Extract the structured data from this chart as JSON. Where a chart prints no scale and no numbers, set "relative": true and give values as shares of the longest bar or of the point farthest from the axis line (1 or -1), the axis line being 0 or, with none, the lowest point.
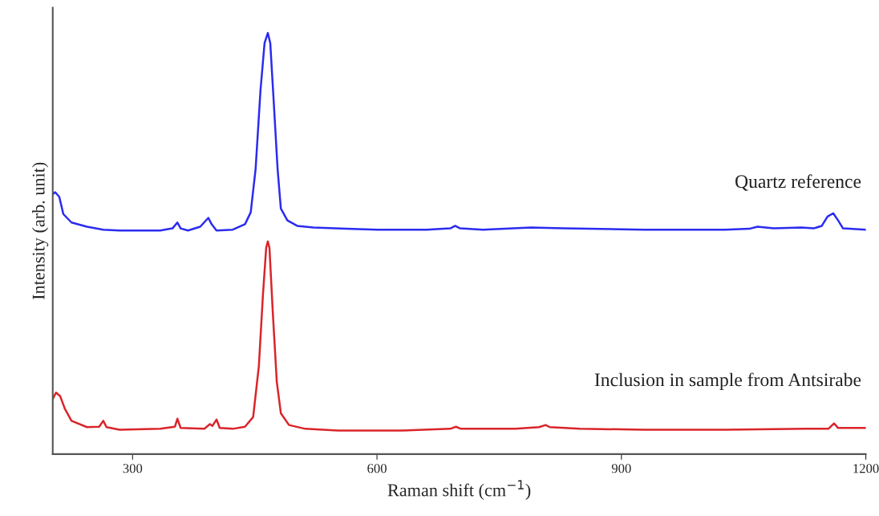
{
  "chart_data": {
    "type": "line",
    "relative": true,
    "xlabel": "Raman shift (cm$^{−1}$)",
    "ylabel": "Intensity (arb. unit)",
    "xlim": [
      202,
      1200
    ],
    "xticks": [
      300,
      600,
      900,
      1200
    ],
    "tick_labels": "x",
    "grid": false,
    "legend": false,
    "marker": "none",
    "line_style": "solid",
    "series": [
      {
        "name": "Quartz reference",
        "color": "#2b2bf0",
        "x": [
          202,
          205,
          210,
          215,
          225,
          244,
          264,
          284,
          334,
          349,
          355,
          359,
          368,
          383,
          393,
          397,
          403,
          423,
          438,
          445,
          451,
          457,
          462,
          466,
          469,
          473,
          478,
          482,
          490,
          502,
          522,
          562,
          601,
          661,
          690,
          696,
          702,
          730,
          789,
          829,
          928,
          1027,
          1057,
          1067,
          1087,
          1121,
          1136,
          1146,
          1153,
          1160,
          1166,
          1172,
          1200
        ],
        "values": [
          0.617,
          0.622,
          0.611,
          0.57,
          0.55,
          0.54,
          0.533,
          0.531,
          0.531,
          0.536,
          0.55,
          0.536,
          0.531,
          0.54,
          0.561,
          0.546,
          0.531,
          0.533,
          0.546,
          0.574,
          0.677,
          0.864,
          0.976,
          1,
          0.976,
          0.845,
          0.677,
          0.583,
          0.555,
          0.542,
          0.538,
          0.535,
          0.533,
          0.533,
          0.536,
          0.542,
          0.536,
          0.533,
          0.538,
          0.536,
          0.533,
          0.533,
          0.535,
          0.54,
          0.536,
          0.538,
          0.536,
          0.542,
          0.564,
          0.572,
          0.555,
          0.536,
          0.533
        ]
      },
      {
        "name": "Inclusion in sample from Antsirabe",
        "color": "#d9252a",
        "x": [
          202,
          206,
          211,
          217,
          225,
          244,
          259,
          264,
          268,
          284,
          334,
          352,
          355,
          359,
          388,
          395,
          398,
          403,
          407,
          423,
          438,
          448,
          455,
          460,
          464,
          466,
          468,
          472,
          477,
          482,
          492,
          512,
          552,
          631,
          690,
          697,
          703,
          770,
          799,
          807,
          812,
          849,
          928,
          1027,
          1126,
          1154,
          1161,
          1166,
          1200
        ],
        "values": [
          0.131,
          0.146,
          0.138,
          0.107,
          0.079,
          0.064,
          0.065,
          0.079,
          0.064,
          0.058,
          0.06,
          0.065,
          0.084,
          0.062,
          0.06,
          0.071,
          0.067,
          0.082,
          0.062,
          0.06,
          0.065,
          0.088,
          0.209,
          0.378,
          0.49,
          0.505,
          0.49,
          0.34,
          0.172,
          0.097,
          0.069,
          0.06,
          0.056,
          0.056,
          0.06,
          0.065,
          0.06,
          0.06,
          0.064,
          0.069,
          0.064,
          0.06,
          0.058,
          0.058,
          0.06,
          0.06,
          0.073,
          0.062,
          0.062
        ]
      }
    ]
  }
}
